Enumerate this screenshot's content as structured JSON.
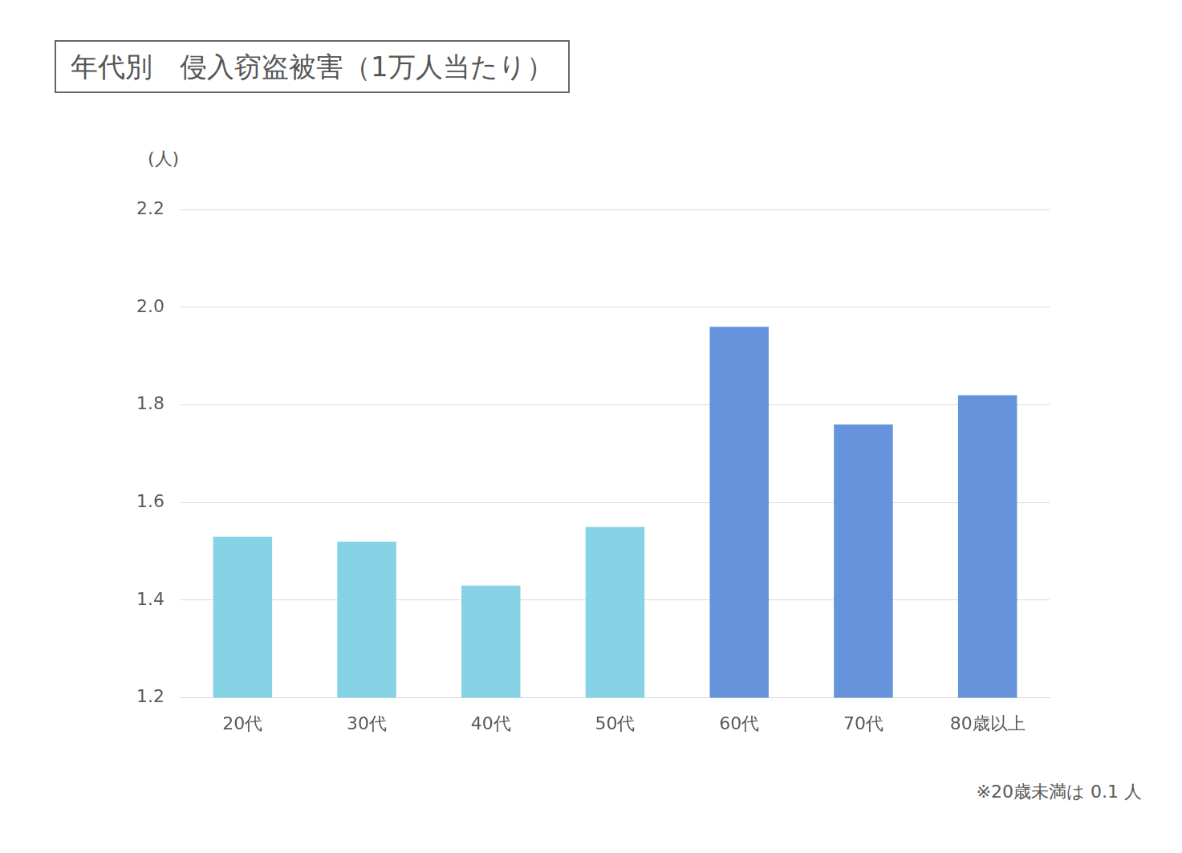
{
  "chart_data": {
    "type": "bar",
    "title": "年代別　侵入窃盗被害（1万人当たり）",
    "y_label": "(人)",
    "categories": [
      "20代",
      "30代",
      "40代",
      "50代",
      "60代",
      "70代",
      "80歳以上"
    ],
    "values": [
      1.53,
      1.52,
      1.43,
      1.55,
      1.96,
      1.76,
      1.82
    ],
    "colors": [
      "#87d3e6",
      "#87d3e6",
      "#87d3e6",
      "#87d3e6",
      "#6593dc",
      "#6593dc",
      "#6593dc"
    ],
    "ylim": [
      1.2,
      2.2
    ],
    "yticks": [
      1.2,
      1.4,
      1.6,
      1.8,
      {
        "value": 2,
        "label": "2.0"
      },
      2.2
    ],
    "grid": true,
    "annotations": [
      "※20歳未満は 0.1 人"
    ]
  }
}
